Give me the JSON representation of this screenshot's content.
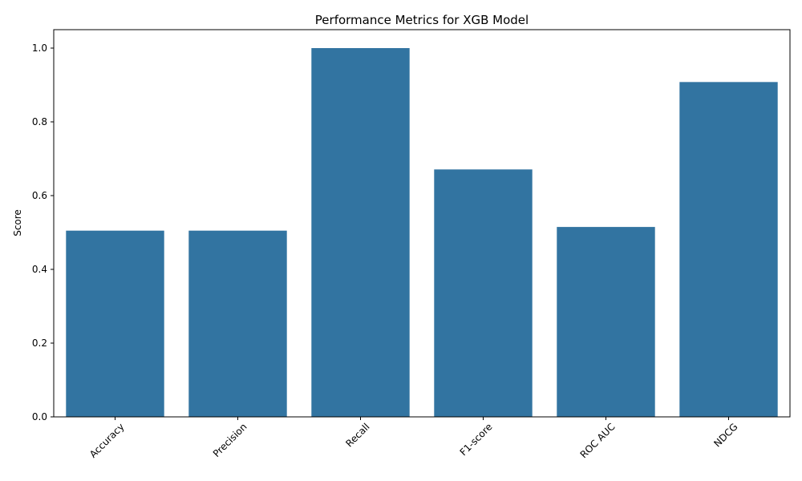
{
  "chart_data": {
    "type": "bar",
    "title": "Performance Metrics for XGB Model",
    "xlabel": "",
    "ylabel": "Score",
    "categories": [
      "Accuracy",
      "Precision",
      "Recall",
      "F1-score",
      "ROC AUC",
      "NDCG"
    ],
    "values": [
      0.505,
      0.505,
      1.0,
      0.671,
      0.515,
      0.908
    ],
    "ylim": [
      0,
      1.05
    ],
    "yticks": [
      0.0,
      0.2,
      0.4,
      0.6,
      0.8,
      1.0
    ],
    "ytick_labels": [
      "0.0",
      "0.2",
      "0.4",
      "0.6",
      "0.8",
      "1.0"
    ],
    "bar_color": "#3274a1",
    "grid": false
  }
}
